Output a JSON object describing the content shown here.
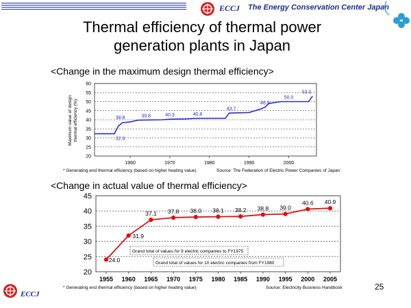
{
  "header": {
    "logo_text": "ECCJ",
    "organization": "The Energy Conservation Center Japan"
  },
  "title": "Thermal efficiency of thermal power generation plants in Japan",
  "title_lines": [
    "Thermal efficiency of thermal power",
    "generation plants in Japan"
  ],
  "footer": {
    "logo_text": "ECCJ",
    "page_number": "25"
  },
  "colors": {
    "brand": "#1a2f8f",
    "chart1_line": "#2a2acb",
    "chart2_line": "#dd1111",
    "logo_red": "#d81e1e"
  },
  "chart_data": [
    {
      "type": "line",
      "subtitle": "<Change in the maximum design thermal efficiency>",
      "ylabel": "Maximum value of design thermal efficiency (%)",
      "ylabel_lines": [
        "Maximum value of design",
        "thermal efficiency (%)"
      ],
      "xlabel": "",
      "ylim": [
        20,
        60
      ],
      "xlim": [
        1951,
        2007
      ],
      "yticks": [
        20,
        25,
        30,
        35,
        40,
        45,
        50,
        55,
        60
      ],
      "xticks": [
        1960,
        1970,
        1980,
        1990,
        2000
      ],
      "grid": true,
      "step_points": [
        [
          1951,
          32.3
        ],
        [
          1956,
          32.3
        ],
        [
          1957,
          36.5
        ],
        [
          1958,
          38.4
        ],
        [
          1960,
          38.8
        ],
        [
          1962,
          39.8
        ],
        [
          1968,
          40.0
        ],
        [
          1970,
          40.3
        ],
        [
          1974,
          40.5
        ],
        [
          1977,
          40.8
        ],
        [
          1984,
          40.8
        ],
        [
          1985,
          43.7
        ],
        [
          1990,
          44.0
        ],
        [
          1993,
          46.0
        ],
        [
          1994,
          46.9
        ],
        [
          1995,
          49.0
        ],
        [
          1998,
          50.0
        ],
        [
          2000,
          50.0
        ],
        [
          2005,
          50.0
        ],
        [
          2006,
          53.0
        ]
      ],
      "labels": [
        {
          "x": 1957.5,
          "y": 32.3,
          "text": "32.3"
        },
        {
          "x": 1957.5,
          "y": 38.8,
          "text": "38.8"
        },
        {
          "x": 1964,
          "y": 39.8,
          "text": "39.8"
        },
        {
          "x": 1970,
          "y": 40.3,
          "text": "40.3"
        },
        {
          "x": 1977,
          "y": 40.8,
          "text": "40.8"
        },
        {
          "x": 1985.5,
          "y": 43.7,
          "text": "43.7"
        },
        {
          "x": 1994,
          "y": 46.9,
          "text": "46.9"
        },
        {
          "x": 2000,
          "y": 50.0,
          "text": "50.0"
        },
        {
          "x": 2004.5,
          "y": 53.0,
          "text": "53.0"
        }
      ],
      "note": "* Generating end thermal efficiency (based on higher heating value)",
      "source": "Source: The Federation of Electric Power Companies of Japan"
    },
    {
      "type": "line",
      "subtitle": "<Change in actual value of thermal efficiency>",
      "ylim": [
        20,
        45
      ],
      "yticks": [
        20,
        25,
        30,
        35,
        40,
        45
      ],
      "grid": true,
      "categories": [
        "1955",
        "1960",
        "1965",
        "1970",
        "1975",
        "1980",
        "1985",
        "1990",
        "1995",
        "2000",
        "2005"
      ],
      "values": [
        24.0,
        31.9,
        37.1,
        37.8,
        38.0,
        38.1,
        38.2,
        38.8,
        39.0,
        40.6,
        40.9
      ],
      "value_labels": [
        "24.0",
        "31.9",
        "37.1",
        "37.8",
        "38.0",
        "38.1",
        "38.2",
        "38.8",
        "39.0",
        "40.6",
        "40.9"
      ],
      "annotations": [
        "Grand total of values for 9 electric companies to FY1975",
        "Grand total of values for 10 electric companies from FY1980"
      ],
      "note": "* Generating end thermal efficiency (based on higher heating value)",
      "source": "Source: Electricity Business Handbook"
    }
  ]
}
